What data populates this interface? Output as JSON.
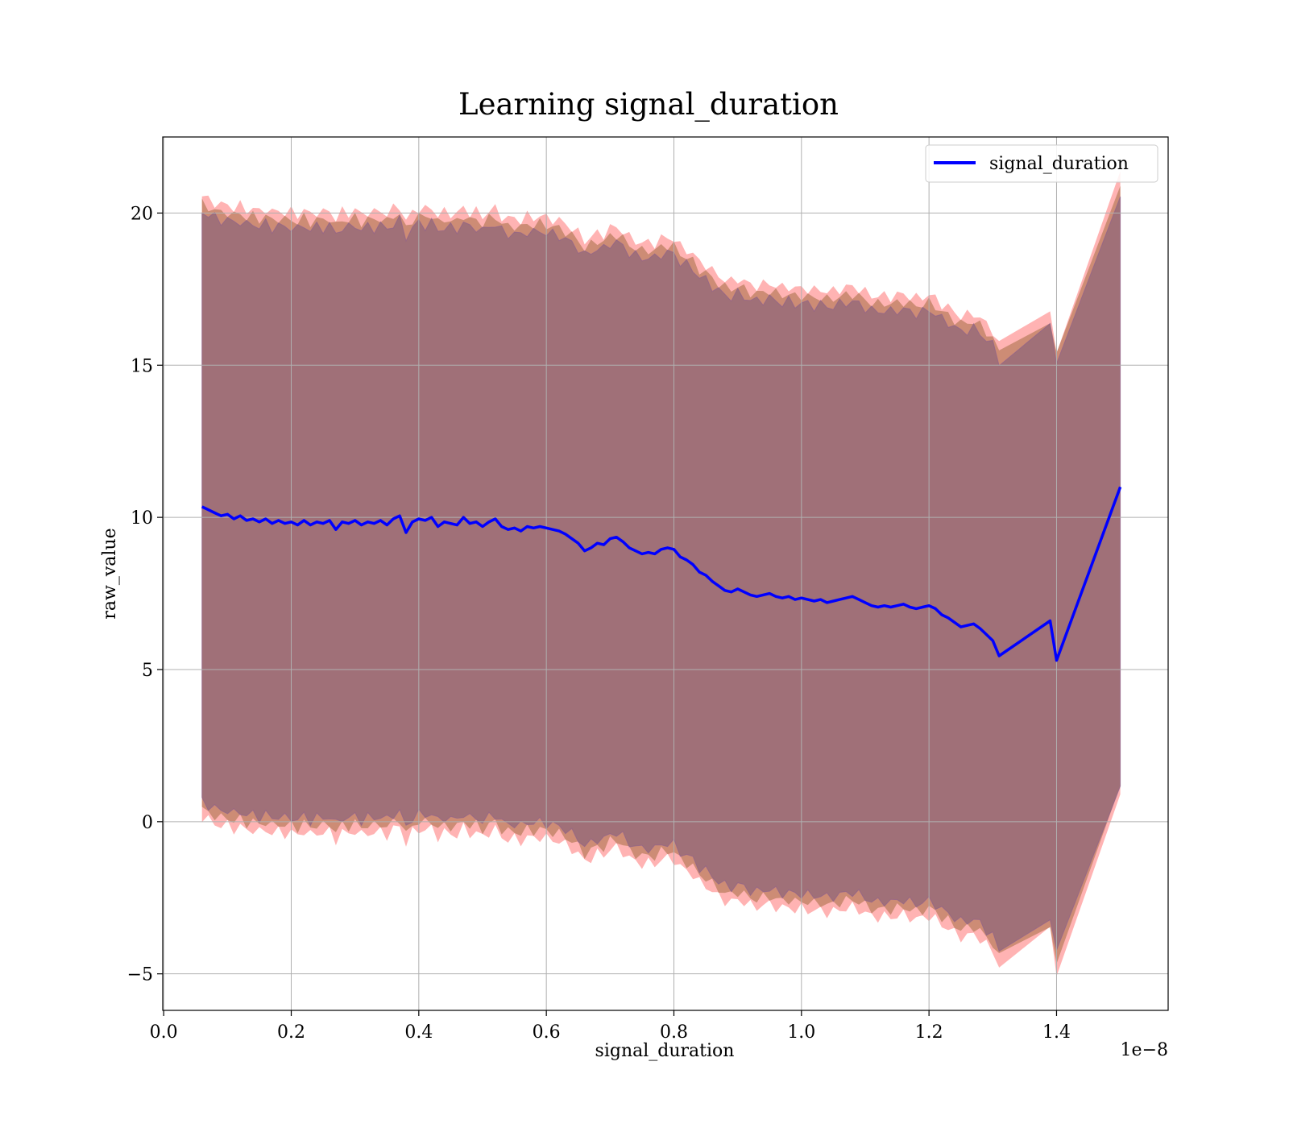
{
  "chart_data": {
    "type": "line",
    "title": "Learning signal_duration",
    "xlabel": "signal_duration",
    "ylabel": "raw_value",
    "x_offset_label": "1e−8",
    "xlim": [
      -0.0015,
      1.575
    ],
    "ylim": [
      -6.2,
      22.5
    ],
    "x_ticks": [
      0.0,
      0.2,
      0.4,
      0.6,
      0.8,
      1.0,
      1.2,
      1.4
    ],
    "x_tick_labels": [
      "0.0",
      "0.2",
      "0.4",
      "0.6",
      "0.8",
      "1.0",
      "1.2",
      "1.4"
    ],
    "y_ticks": [
      -5,
      0,
      5,
      10,
      15,
      20
    ],
    "y_tick_labels": [
      "−5",
      "0",
      "5",
      "10",
      "15",
      "20"
    ],
    "grid": true,
    "legend_position": "top-right",
    "series": [
      {
        "name": "signal_duration",
        "color": "#0000ff",
        "x": [
          0.06,
          0.07,
          0.08,
          0.09,
          0.1,
          0.11,
          0.12,
          0.13,
          0.14,
          0.15,
          0.16,
          0.17,
          0.18,
          0.19,
          0.2,
          0.21,
          0.22,
          0.23,
          0.24,
          0.25,
          0.26,
          0.27,
          0.28,
          0.29,
          0.3,
          0.31,
          0.32,
          0.33,
          0.34,
          0.35,
          0.36,
          0.37,
          0.38,
          0.39,
          0.4,
          0.41,
          0.42,
          0.43,
          0.44,
          0.45,
          0.46,
          0.47,
          0.48,
          0.49,
          0.5,
          0.51,
          0.52,
          0.53,
          0.54,
          0.55,
          0.56,
          0.57,
          0.58,
          0.59,
          0.6,
          0.61,
          0.62,
          0.63,
          0.64,
          0.65,
          0.66,
          0.67,
          0.68,
          0.69,
          0.7,
          0.71,
          0.72,
          0.73,
          0.74,
          0.75,
          0.76,
          0.77,
          0.78,
          0.79,
          0.8,
          0.81,
          0.82,
          0.83,
          0.84,
          0.85,
          0.86,
          0.87,
          0.88,
          0.89,
          0.9,
          0.91,
          0.92,
          0.93,
          0.94,
          0.95,
          0.96,
          0.97,
          0.98,
          0.99,
          1.0,
          1.01,
          1.02,
          1.03,
          1.04,
          1.05,
          1.06,
          1.07,
          1.08,
          1.09,
          1.1,
          1.11,
          1.12,
          1.13,
          1.14,
          1.15,
          1.16,
          1.17,
          1.18,
          1.19,
          1.2,
          1.21,
          1.22,
          1.23,
          1.24,
          1.25,
          1.26,
          1.27,
          1.28,
          1.29,
          1.3,
          1.31,
          1.39,
          1.4,
          1.5
        ],
        "y": [
          10.35,
          10.25,
          10.15,
          10.05,
          10.1,
          9.95,
          10.05,
          9.9,
          9.95,
          9.85,
          9.95,
          9.8,
          9.9,
          9.8,
          9.85,
          9.75,
          9.9,
          9.75,
          9.85,
          9.8,
          9.9,
          9.6,
          9.85,
          9.8,
          9.9,
          9.75,
          9.85,
          9.8,
          9.9,
          9.75,
          9.95,
          10.05,
          9.5,
          9.85,
          9.95,
          9.9,
          10.0,
          9.7,
          9.85,
          9.8,
          9.75,
          10.0,
          9.8,
          9.85,
          9.7,
          9.85,
          9.95,
          9.7,
          9.6,
          9.65,
          9.55,
          9.7,
          9.65,
          9.7,
          9.65,
          9.6,
          9.55,
          9.45,
          9.3,
          9.15,
          8.9,
          9.0,
          9.15,
          9.1,
          9.3,
          9.35,
          9.2,
          9.0,
          8.9,
          8.8,
          8.85,
          8.8,
          8.95,
          9.0,
          8.95,
          8.7,
          8.6,
          8.45,
          8.2,
          8.1,
          7.9,
          7.75,
          7.6,
          7.55,
          7.65,
          7.55,
          7.45,
          7.4,
          7.45,
          7.5,
          7.4,
          7.35,
          7.4,
          7.3,
          7.35,
          7.3,
          7.25,
          7.3,
          7.2,
          7.25,
          7.3,
          7.35,
          7.4,
          7.3,
          7.2,
          7.1,
          7.05,
          7.1,
          7.05,
          7.1,
          7.15,
          7.05,
          7.0,
          7.05,
          7.1,
          7.0,
          6.8,
          6.7,
          6.55,
          6.4,
          6.45,
          6.5,
          6.35,
          6.15,
          5.95,
          5.45,
          6.6,
          5.3,
          11.0
        ]
      }
    ],
    "band_colors": {
      "outer": "#ff9999",
      "middle": "#c8876e",
      "inner": "#a07078",
      "edge": "#8a5e8f"
    }
  }
}
